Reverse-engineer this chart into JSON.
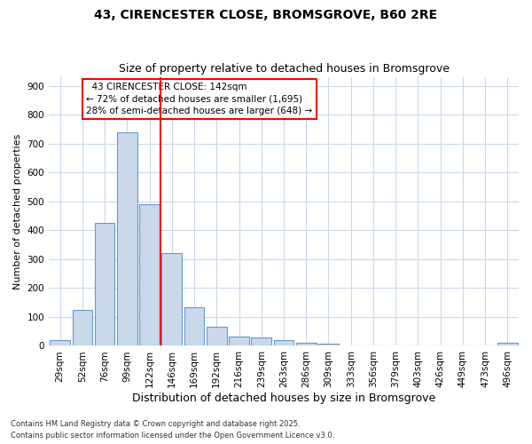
{
  "title1": "43, CIRENCESTER CLOSE, BROMSGROVE, B60 2RE",
  "title2": "Size of property relative to detached houses in Bromsgrove",
  "xlabel": "Distribution of detached houses by size in Bromsgrove",
  "ylabel": "Number of detached properties",
  "categories": [
    "29sqm",
    "52sqm",
    "76sqm",
    "99sqm",
    "122sqm",
    "146sqm",
    "169sqm",
    "192sqm",
    "216sqm",
    "239sqm",
    "263sqm",
    "286sqm",
    "309sqm",
    "333sqm",
    "356sqm",
    "379sqm",
    "403sqm",
    "426sqm",
    "449sqm",
    "473sqm",
    "496sqm"
  ],
  "values": [
    20,
    125,
    425,
    740,
    490,
    320,
    135,
    65,
    32,
    28,
    20,
    12,
    8,
    0,
    0,
    0,
    0,
    0,
    0,
    0,
    10
  ],
  "bar_color": "#c9d9ea",
  "bar_edge_color": "#6699cc",
  "red_line_index": 5,
  "annotation_title": "43 CIRENCESTER CLOSE: 142sqm",
  "annotation_line1": "← 72% of detached houses are smaller (1,695)",
  "annotation_line2": "28% of semi-detached houses are larger (648) →",
  "ylim": [
    0,
    930
  ],
  "yticks": [
    0,
    100,
    200,
    300,
    400,
    500,
    600,
    700,
    800,
    900
  ],
  "background_color": "#ffffff",
  "plot_bg_color": "#ffffff",
  "grid_color": "#c8d8e8",
  "title1_fontsize": 10,
  "title2_fontsize": 9,
  "xlabel_fontsize": 9,
  "ylabel_fontsize": 8,
  "tick_fontsize": 7.5,
  "footer1": "Contains HM Land Registry data © Crown copyright and database right 2025.",
  "footer2": "Contains public sector information licensed under the Open Government Licence v3.0."
}
